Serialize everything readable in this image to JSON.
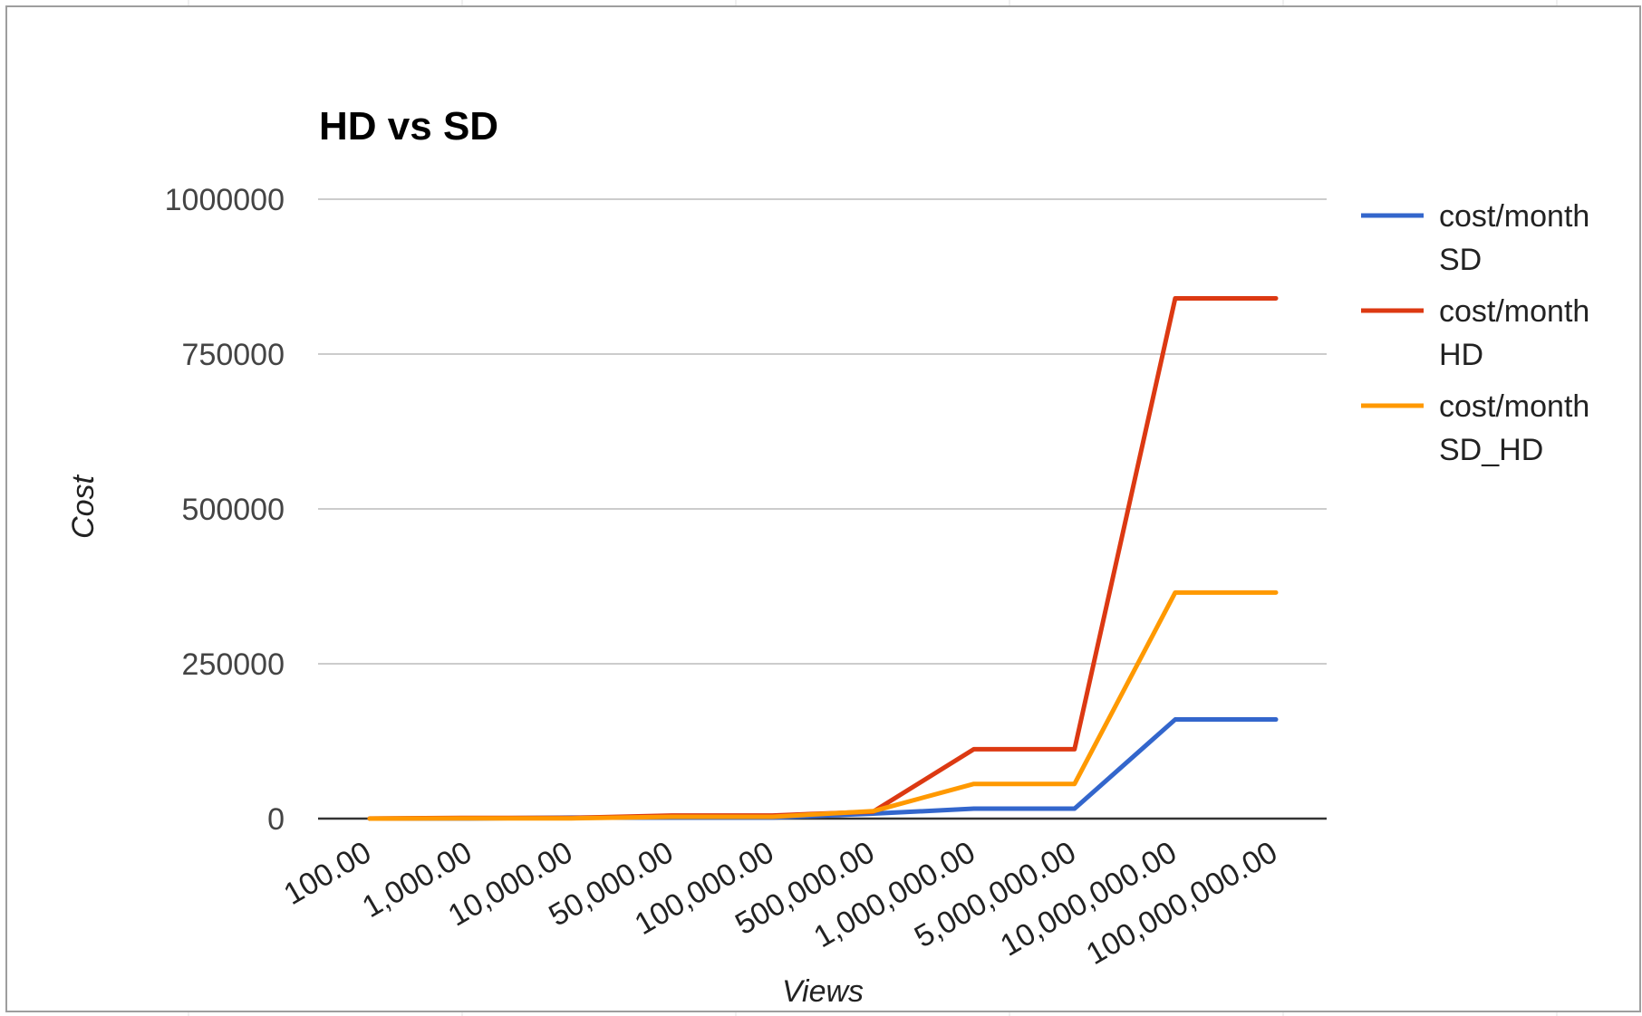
{
  "chart_data": {
    "type": "line",
    "title": "HD vs SD",
    "xlabel": "Views",
    "ylabel": "Cost",
    "categories": [
      "100.00",
      "1,000.00",
      "10,000.00",
      "50,000.00",
      "100,000.00",
      "500,000.00",
      "1,000,000.00",
      "5,000,000.00",
      "10,000,000.00",
      "100,000,000.00"
    ],
    "y_ticks": [
      "0",
      "250000",
      "500000",
      "750000",
      "1000000"
    ],
    "ylim": [
      0,
      1000000
    ],
    "grid": true,
    "legend_position": "right",
    "series": [
      {
        "name": "cost/month SD",
        "legend_lines": [
          "cost/month",
          "SD"
        ],
        "color": "#3366cc",
        "values": [
          16,
          160,
          1600,
          1600,
          1600,
          8000,
          16000,
          16000,
          160000,
          160000
        ]
      },
      {
        "name": "cost/month HD",
        "legend_lines": [
          "cost/month",
          "HD"
        ],
        "color": "#dc3912",
        "values": [
          112,
          1120,
          1120,
          5000,
          5000,
          11200,
          112000,
          112000,
          840000,
          840000
        ]
      },
      {
        "name": "cost/month SD_HD",
        "legend_lines": [
          "cost/month",
          "SD_HD"
        ],
        "color": "#ff9900",
        "values": [
          45,
          450,
          450,
          3000,
          3000,
          12000,
          56000,
          56000,
          365000,
          365000
        ]
      }
    ]
  }
}
